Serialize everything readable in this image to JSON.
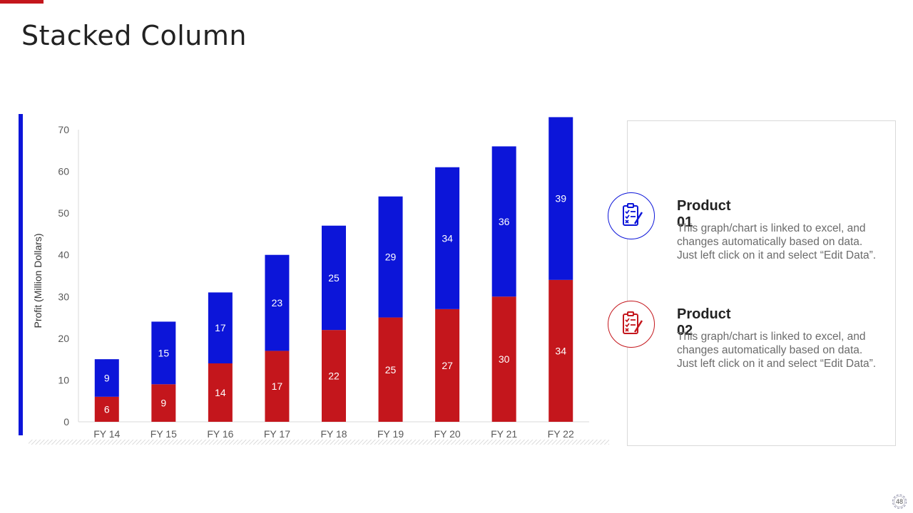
{
  "slide": {
    "title": "Stacked Column",
    "page_number": "48",
    "accent_color": "#c4161c",
    "series_colors": {
      "product_01": "#0c15d9",
      "product_02": "#c4161c"
    }
  },
  "legend": [
    {
      "title": "Product 01",
      "icon": "checklist-icon",
      "color": "#0c15d9",
      "desc_lines": [
        "This graph/chart is linked to excel, and",
        "changes automatically based on data.",
        "Just left click on it and select “Edit Data”."
      ]
    },
    {
      "title": "Product 02",
      "icon": "checklist-icon",
      "color": "#c4161c",
      "desc_lines": [
        "This graph/chart is linked to excel, and",
        "changes automatically based on data.",
        "Just left click on it and select “Edit Data”."
      ]
    }
  ],
  "chart_data": {
    "type": "bar",
    "stacked": true,
    "title": "",
    "xlabel": "",
    "ylabel": "Profit  (Million Dollars)",
    "ylim": [
      0,
      70
    ],
    "yticks": [
      0,
      10,
      20,
      30,
      40,
      50,
      60,
      70
    ],
    "categories": [
      "FY 14",
      "FY 15",
      "FY 16",
      "FY 17",
      "FY 18",
      "FY 19",
      "FY 20",
      "FY 21",
      "FY 22"
    ],
    "series": [
      {
        "name": "Product 02",
        "color": "#c4161c",
        "values": [
          6,
          9,
          14,
          17,
          22,
          25,
          27,
          30,
          34
        ]
      },
      {
        "name": "Product 01",
        "color": "#0c15d9",
        "values": [
          9,
          15,
          17,
          23,
          25,
          29,
          34,
          36,
          39
        ]
      }
    ],
    "grid": false,
    "data_labels": true
  }
}
